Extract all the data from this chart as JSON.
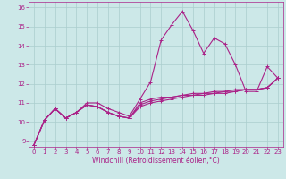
{
  "xlabel": "Windchill (Refroidissement éolien,°C)",
  "x": [
    0,
    1,
    2,
    3,
    4,
    5,
    6,
    7,
    8,
    9,
    10,
    11,
    12,
    13,
    14,
    15,
    16,
    17,
    18,
    19,
    20,
    21,
    22,
    23
  ],
  "series": [
    [
      8.8,
      10.1,
      10.7,
      10.2,
      10.5,
      11.0,
      11.0,
      10.7,
      10.5,
      10.3,
      11.2,
      12.1,
      14.3,
      15.1,
      15.8,
      14.8,
      13.6,
      14.4,
      14.1,
      13.0,
      11.6,
      11.6,
      12.9,
      12.3
    ],
    [
      8.8,
      10.1,
      10.7,
      10.2,
      10.5,
      10.9,
      10.8,
      10.5,
      10.3,
      10.2,
      11.0,
      11.2,
      11.3,
      11.3,
      11.4,
      11.5,
      11.5,
      11.6,
      11.6,
      11.7,
      11.7,
      11.7,
      11.8,
      12.3
    ],
    [
      8.8,
      10.1,
      10.7,
      10.2,
      10.5,
      10.9,
      10.8,
      10.5,
      10.3,
      10.2,
      10.9,
      11.1,
      11.2,
      11.3,
      11.4,
      11.4,
      11.5,
      11.5,
      11.6,
      11.6,
      11.7,
      11.7,
      11.8,
      12.3
    ],
    [
      8.8,
      10.1,
      10.7,
      10.2,
      10.5,
      10.9,
      10.8,
      10.5,
      10.3,
      10.2,
      10.8,
      11.0,
      11.1,
      11.2,
      11.3,
      11.4,
      11.4,
      11.5,
      11.5,
      11.6,
      11.7,
      11.7,
      11.8,
      12.3
    ]
  ],
  "line_color": "#aa2288",
  "bg_color": "#cce8e8",
  "grid_color": "#aacece",
  "yticks": [
    9,
    10,
    11,
    12,
    13,
    14,
    15,
    16
  ],
  "xticks": [
    0,
    1,
    2,
    3,
    4,
    5,
    6,
    7,
    8,
    9,
    10,
    11,
    12,
    13,
    14,
    15,
    16,
    17,
    18,
    19,
    20,
    21,
    22,
    23
  ],
  "marker": "+",
  "markersize": 3,
  "linewidth": 0.8,
  "tick_fontsize": 5,
  "xlabel_fontsize": 5.5
}
